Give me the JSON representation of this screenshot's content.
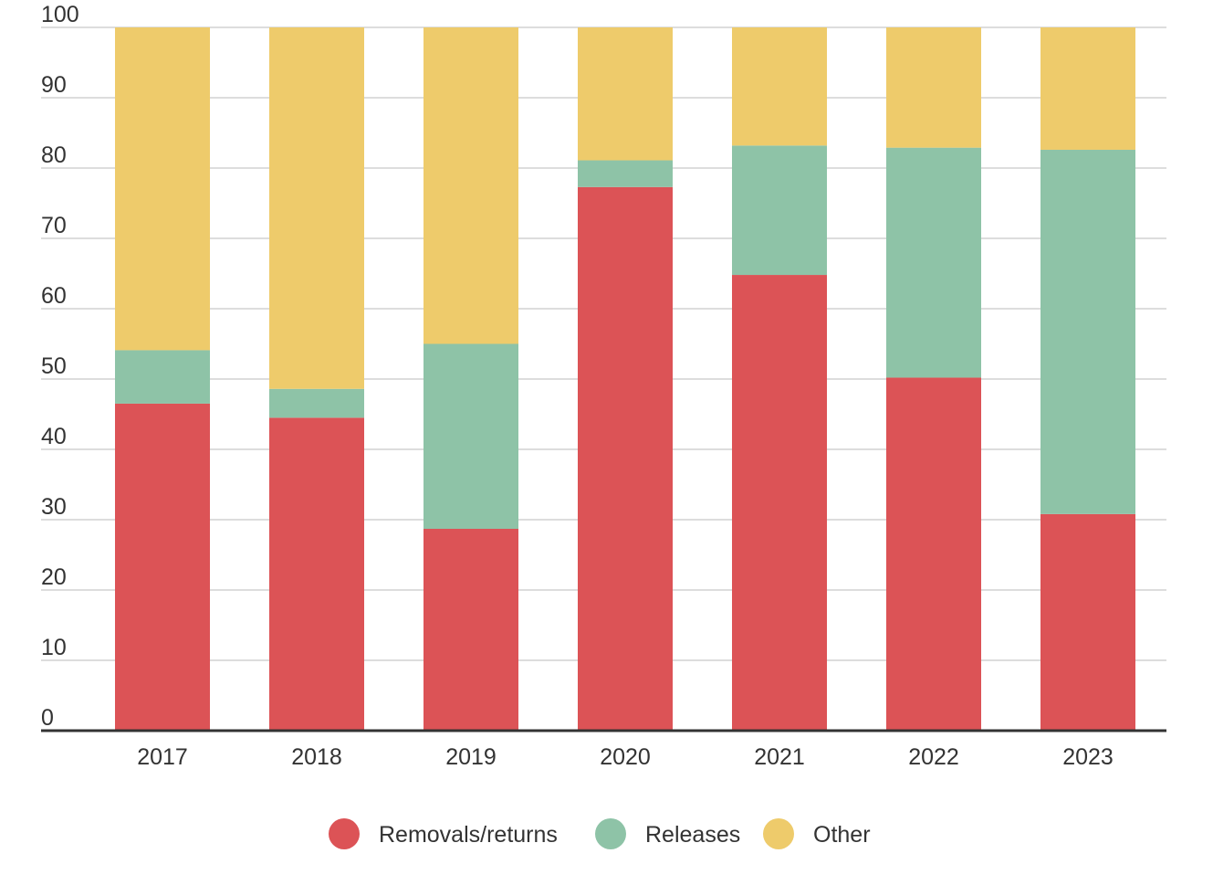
{
  "chart_data": {
    "type": "bar",
    "stacked": true,
    "categories": [
      "2017",
      "2018",
      "2019",
      "2020",
      "2021",
      "2022",
      "2023"
    ],
    "series": [
      {
        "name": "Removals/returns",
        "color": "#dc5356",
        "values": [
          46.5,
          44.5,
          28.7,
          77.3,
          64.8,
          50.2,
          30.8
        ]
      },
      {
        "name": "Releases",
        "color": "#8ec3a7",
        "values": [
          7.6,
          4.1,
          26.3,
          3.8,
          18.4,
          32.7,
          51.8
        ]
      },
      {
        "name": "Other",
        "color": "#eecb6b",
        "values": [
          45.9,
          51.4,
          45.0,
          18.9,
          16.8,
          17.1,
          17.4
        ]
      }
    ],
    "ylim": [
      0,
      100
    ],
    "y_ticks": [
      "0",
      "10",
      "20",
      "30",
      "40",
      "50",
      "60",
      "70",
      "80",
      "90",
      "100"
    ],
    "grid": true,
    "legend_position": "bottom-center",
    "title": "",
    "xlabel": "",
    "ylabel": ""
  }
}
